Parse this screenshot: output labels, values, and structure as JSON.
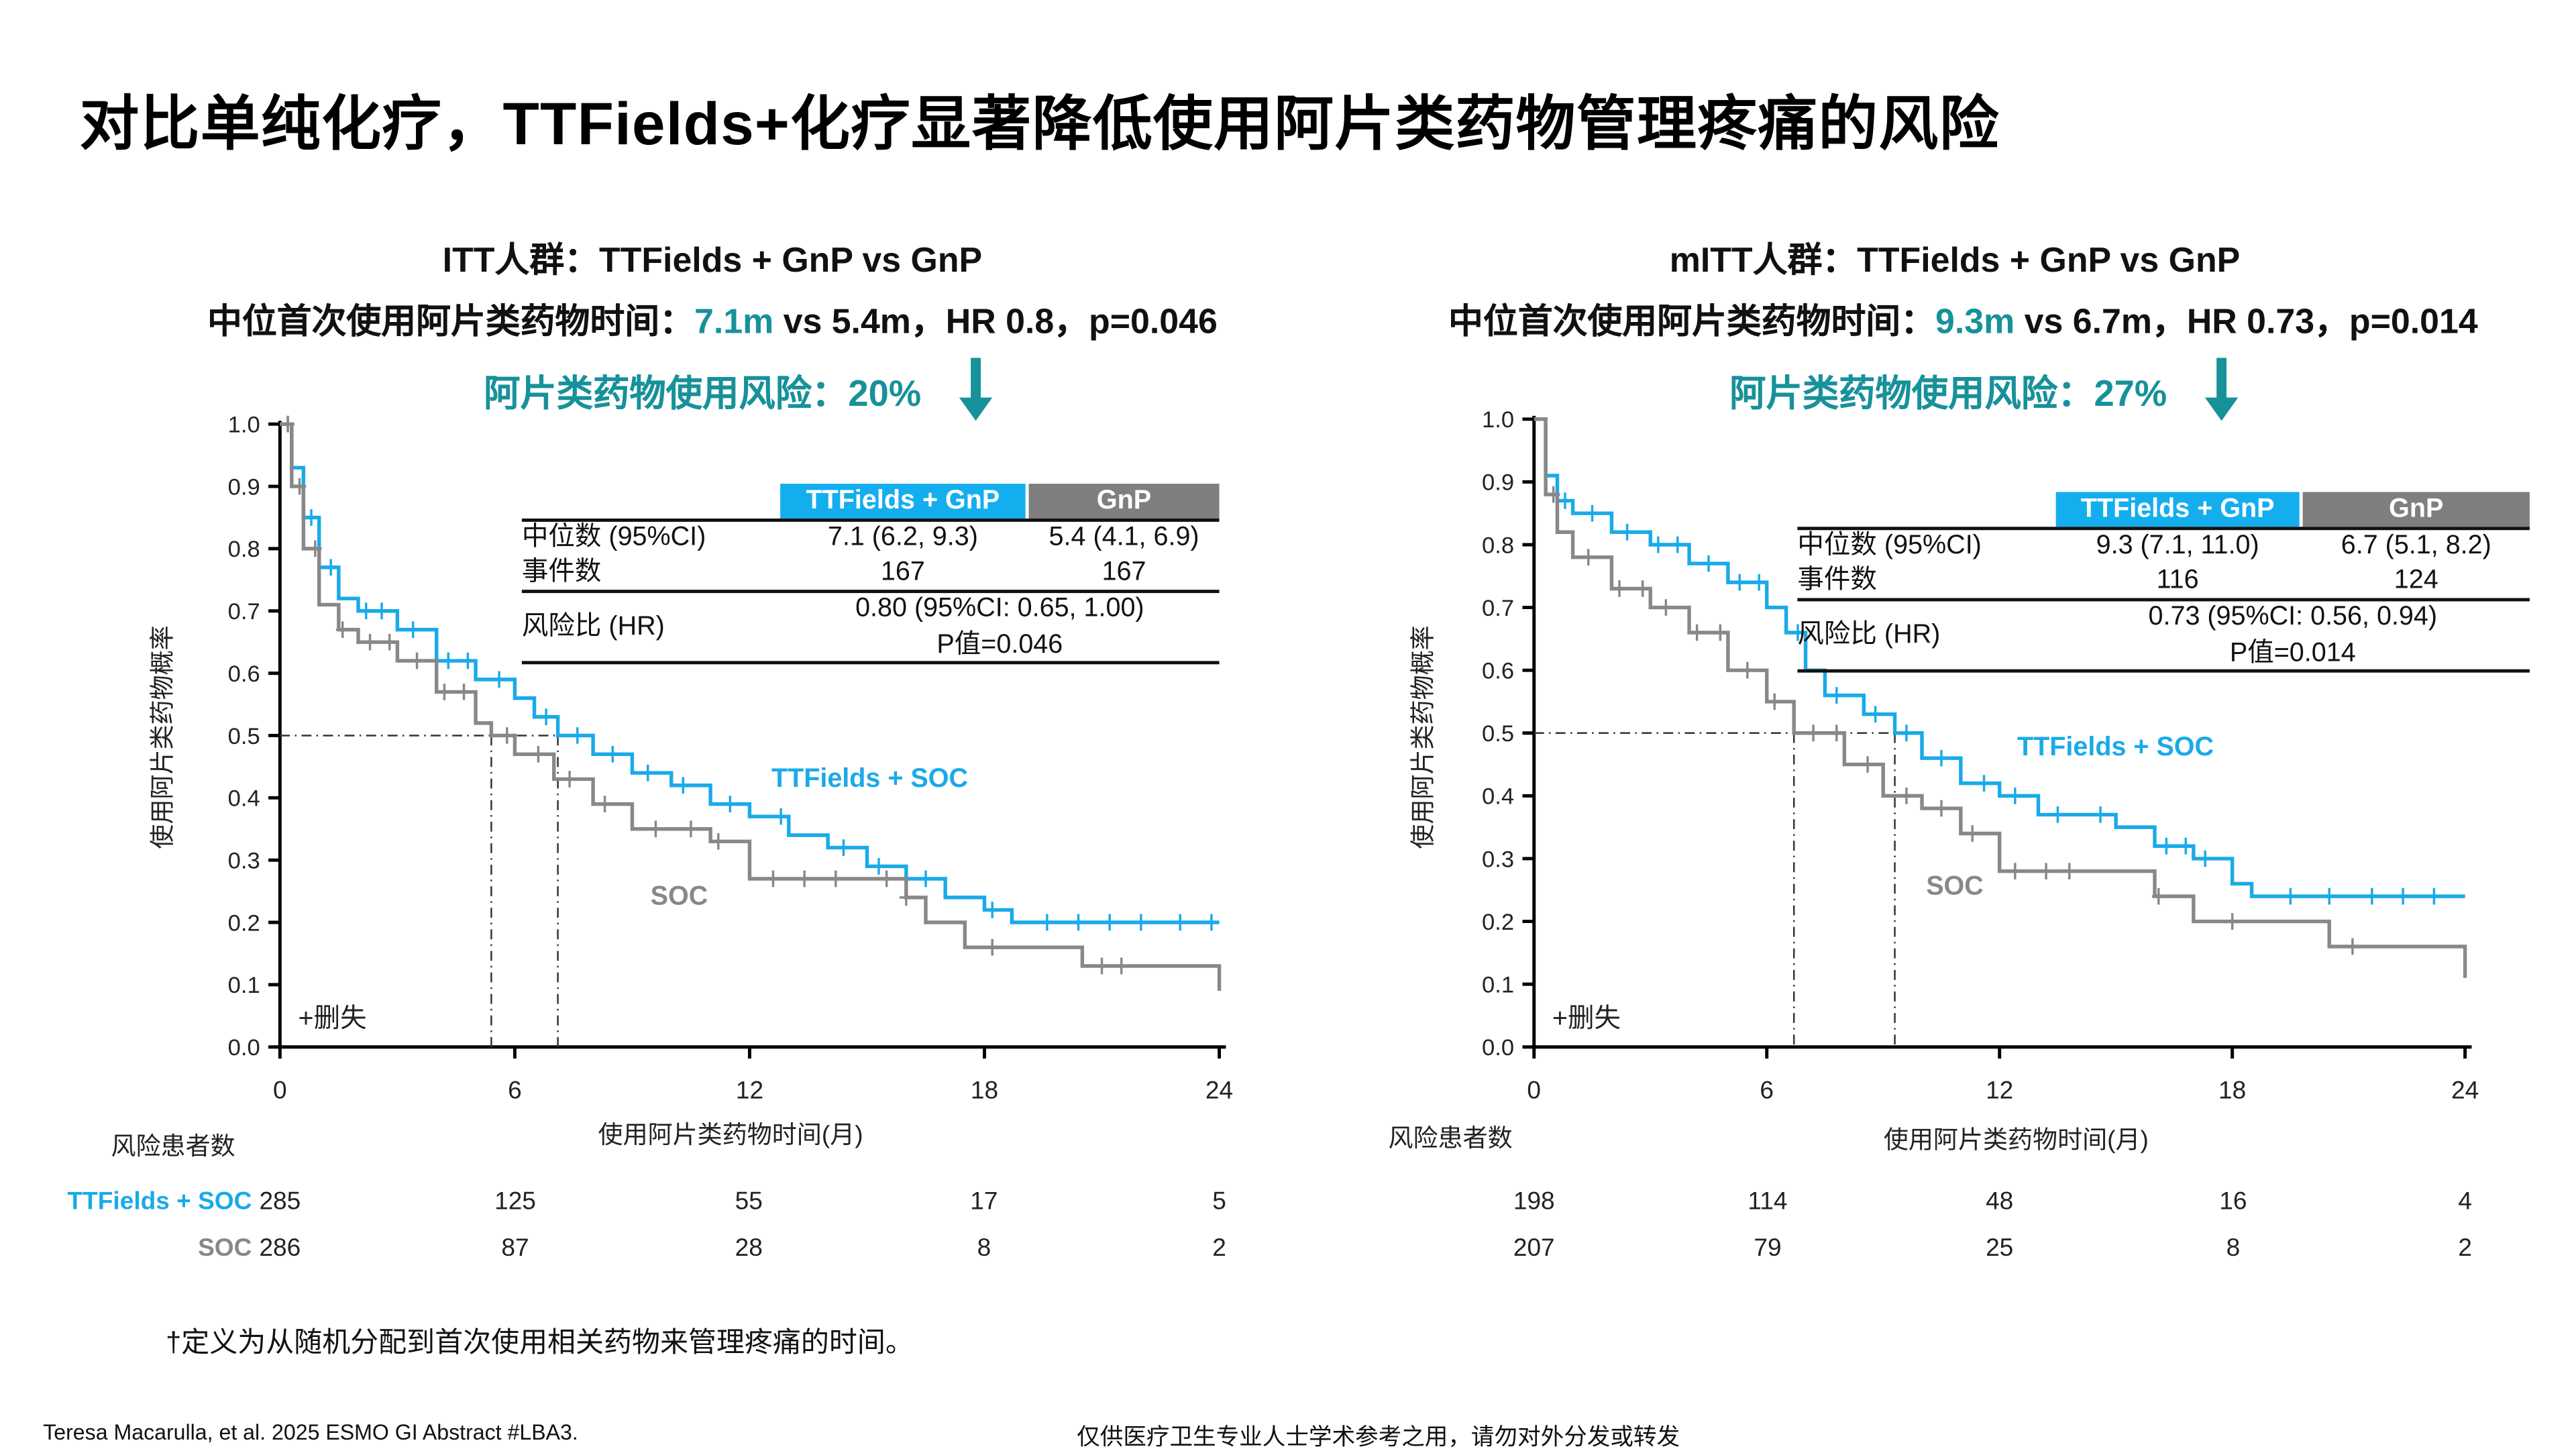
{
  "title": "对比单纯化疗，TTFields+化疗显著降低使用阿片类药物管理疼痛的风险",
  "colors": {
    "ttfields": "#1aaae8",
    "soc": "#888888",
    "teal": "#17919a",
    "header_gray": "#7f7f7f",
    "header_blue": "#14aeef"
  },
  "panels": [
    {
      "population": "ITT人群：TTFields + GnP vs GnP",
      "median_prefix": "中位首次使用阿片类药物时间：",
      "median_highlight": "7.1m",
      "median_rest": " vs 5.4m，HR 0.8，p=0.046",
      "risk_reduction": "阿片类药物使用风险：20%",
      "table": {
        "col_headers": [
          "TTFields + GnP",
          "GnP"
        ],
        "row1_label": "中位数 (95%CI)",
        "row1_values": [
          "7.1 (6.2, 9.3)",
          "5.4 (4.1, 6.9)"
        ],
        "row2_label": "事件数",
        "row2_values": [
          "167",
          "167"
        ],
        "hr_label": "风险比 (HR)",
        "hr_value": "0.80 (95%CI: 0.65, 1.00)",
        "p_value": "P值=0.046"
      },
      "risk_table": {
        "title": "风险患者数",
        "rows": [
          {
            "name": "TTFields + SOC",
            "values": [
              "285",
              "125",
              "55",
              "17",
              "5"
            ]
          },
          {
            "name": "SOC",
            "values": [
              "286",
              "87",
              "28",
              "8",
              "2"
            ]
          }
        ]
      }
    },
    {
      "population": "mITT人群：TTFields + GnP vs GnP",
      "median_prefix": "中位首次使用阿片类药物时间：",
      "median_highlight": "9.3m",
      "median_rest": " vs 6.7m，HR 0.73，p=0.014",
      "risk_reduction": "阿片类药物使用风险：27%",
      "table": {
        "col_headers": [
          "TTFields + GnP",
          "GnP"
        ],
        "row1_label": "中位数 (95%CI)",
        "row1_values": [
          "9.3 (7.1, 11.0)",
          "6.7 (5.1, 8.2)"
        ],
        "row2_label": "事件数",
        "row2_values": [
          "116",
          "124"
        ],
        "hr_label": "风险比 (HR)",
        "hr_value": "0.73 (95%CI: 0.56, 0.94)",
        "p_value": "P值=0.014"
      },
      "risk_table": {
        "title": "风险患者数",
        "rows": [
          {
            "name": "TTFields + SOC",
            "values": [
              "198",
              "114",
              "48",
              "16",
              "4"
            ]
          },
          {
            "name": "SOC",
            "values": [
              "207",
              "79",
              "25",
              "8",
              "2"
            ]
          }
        ]
      }
    }
  ],
  "chart_data": [
    {
      "type": "line",
      "subtype": "kaplan-meier step",
      "xlabel": "使用阿片类药物时间(月)",
      "ylabel": "使用阿片类药物概率",
      "xlim": [
        0,
        24
      ],
      "ylim": [
        0,
        1
      ],
      "x_ticks": [
        "0",
        "6",
        "12",
        "18",
        "24"
      ],
      "y_ticks": [
        "0.0",
        "0.1",
        "0.2",
        "0.3",
        "0.4",
        "0.5",
        "0.6",
        "0.7",
        "0.8",
        "0.9",
        "1.0"
      ],
      "censor_legend": "+删失",
      "medians": [
        5.4,
        7.1
      ],
      "series": [
        {
          "name": "TTFields + SOC",
          "color": "#1aaae8",
          "points": [
            [
              0,
              1.0
            ],
            [
              0.3,
              0.93
            ],
            [
              0.6,
              0.85
            ],
            [
              1,
              0.77
            ],
            [
              1.5,
              0.72
            ],
            [
              2,
              0.7
            ],
            [
              3,
              0.67
            ],
            [
              4,
              0.62
            ],
            [
              5,
              0.59
            ],
            [
              6,
              0.56
            ],
            [
              6.5,
              0.53
            ],
            [
              7.1,
              0.5
            ],
            [
              8,
              0.47
            ],
            [
              9,
              0.44
            ],
            [
              10,
              0.42
            ],
            [
              11,
              0.39
            ],
            [
              12,
              0.37
            ],
            [
              13,
              0.34
            ],
            [
              14,
              0.32
            ],
            [
              15,
              0.29
            ],
            [
              16,
              0.27
            ],
            [
              17,
              0.24
            ],
            [
              18,
              0.22
            ],
            [
              18.7,
              0.2
            ],
            [
              24,
              0.2
            ]
          ],
          "censored": [
            0.2,
            0.8,
            1.3,
            2.2,
            2.6,
            3.4,
            4.3,
            4.8,
            5.6,
            6.8,
            7.6,
            8.5,
            9.4,
            10.3,
            11.5,
            12.8,
            14.4,
            15.3,
            16.5,
            18.2,
            19.6,
            20.4,
            21.2,
            22.0,
            23.0,
            23.8
          ]
        },
        {
          "name": "SOC",
          "color": "#888888",
          "points": [
            [
              0,
              1.0
            ],
            [
              0.3,
              0.9
            ],
            [
              0.6,
              0.8
            ],
            [
              1,
              0.71
            ],
            [
              1.5,
              0.67
            ],
            [
              2,
              0.65
            ],
            [
              3,
              0.62
            ],
            [
              4,
              0.57
            ],
            [
              5,
              0.52
            ],
            [
              5.4,
              0.5
            ],
            [
              6,
              0.47
            ],
            [
              7,
              0.43
            ],
            [
              8,
              0.39
            ],
            [
              9,
              0.35
            ],
            [
              11,
              0.33
            ],
            [
              12,
              0.27
            ],
            [
              16,
              0.24
            ],
            [
              16.5,
              0.2
            ],
            [
              17.5,
              0.16
            ],
            [
              20.5,
              0.13
            ],
            [
              24,
              0.09
            ]
          ],
          "censored": [
            0.2,
            0.5,
            0.9,
            1.6,
            2.3,
            2.8,
            3.5,
            4.2,
            4.7,
            5.8,
            6.6,
            7.4,
            8.3,
            9.6,
            10.5,
            11.2,
            12.6,
            13.4,
            14.2,
            15.5,
            16.0,
            18.2,
            21.0,
            21.5
          ]
        }
      ],
      "annotations": [
        {
          "text": "TTFields + SOC",
          "series": 0
        },
        {
          "text": "SOC",
          "series": 1
        }
      ]
    },
    {
      "type": "line",
      "subtype": "kaplan-meier step",
      "xlabel": "使用阿片类药物时间(月)",
      "ylabel": "使用阿片类药物概率",
      "xlim": [
        0,
        24
      ],
      "ylim": [
        0,
        1
      ],
      "x_ticks": [
        "0",
        "6",
        "12",
        "18",
        "24"
      ],
      "y_ticks": [
        "0.0",
        "0.1",
        "0.2",
        "0.3",
        "0.4",
        "0.5",
        "0.6",
        "0.7",
        "0.8",
        "0.9",
        "1.0"
      ],
      "censor_legend": "+删失",
      "medians": [
        6.7,
        9.3
      ],
      "series": [
        {
          "name": "TTFields + SOC",
          "color": "#1aaae8",
          "points": [
            [
              0,
              1.0
            ],
            [
              0.3,
              0.91
            ],
            [
              0.6,
              0.87
            ],
            [
              1,
              0.85
            ],
            [
              2,
              0.82
            ],
            [
              3,
              0.8
            ],
            [
              4,
              0.77
            ],
            [
              5,
              0.74
            ],
            [
              6,
              0.7
            ],
            [
              6.5,
              0.66
            ],
            [
              7,
              0.6
            ],
            [
              7.5,
              0.56
            ],
            [
              8.5,
              0.53
            ],
            [
              9.3,
              0.5
            ],
            [
              10,
              0.46
            ],
            [
              11,
              0.42
            ],
            [
              12,
              0.4
            ],
            [
              13,
              0.37
            ],
            [
              15,
              0.35
            ],
            [
              16,
              0.32
            ],
            [
              17,
              0.3
            ],
            [
              18,
              0.26
            ],
            [
              18.5,
              0.24
            ],
            [
              24,
              0.24
            ]
          ],
          "censored": [
            0.8,
            1.5,
            2.4,
            3.2,
            3.7,
            4.5,
            5.3,
            5.8,
            6.8,
            7.8,
            8.8,
            9.6,
            10.5,
            11.6,
            12.4,
            13.5,
            14.6,
            16.3,
            16.8,
            17.3,
            19.5,
            20.5,
            21.6,
            22.4,
            23.2
          ]
        },
        {
          "name": "SOC",
          "color": "#888888",
          "points": [
            [
              0,
              1.0
            ],
            [
              0.3,
              0.88
            ],
            [
              0.6,
              0.82
            ],
            [
              1,
              0.78
            ],
            [
              2,
              0.73
            ],
            [
              3,
              0.7
            ],
            [
              4,
              0.66
            ],
            [
              5,
              0.6
            ],
            [
              6,
              0.55
            ],
            [
              6.7,
              0.5
            ],
            [
              8,
              0.45
            ],
            [
              9,
              0.4
            ],
            [
              10,
              0.38
            ],
            [
              11,
              0.34
            ],
            [
              12,
              0.28
            ],
            [
              16,
              0.24
            ],
            [
              17,
              0.2
            ],
            [
              20.5,
              0.16
            ],
            [
              24,
              0.11
            ]
          ],
          "censored": [
            0.5,
            1.4,
            2.2,
            2.8,
            3.4,
            4.2,
            4.8,
            5.5,
            6.2,
            7.2,
            7.8,
            8.6,
            9.6,
            10.5,
            11.3,
            12.4,
            13.2,
            13.8,
            16.1,
            18.0,
            21.1
          ]
        }
      ],
      "annotations": [
        {
          "text": "TTFields + SOC",
          "series": 0
        },
        {
          "text": "SOC",
          "series": 1
        }
      ]
    }
  ],
  "footnote": "†定义为从随机分配到首次使用相关药物来管理疼痛的时间。",
  "citation": "Teresa Macarulla, et al. 2025 ESMO GI  Abstract #LBA3.",
  "disclaimer": "仅供医疗卫生专业人士学术参考之用，请勿对外分发或转发"
}
